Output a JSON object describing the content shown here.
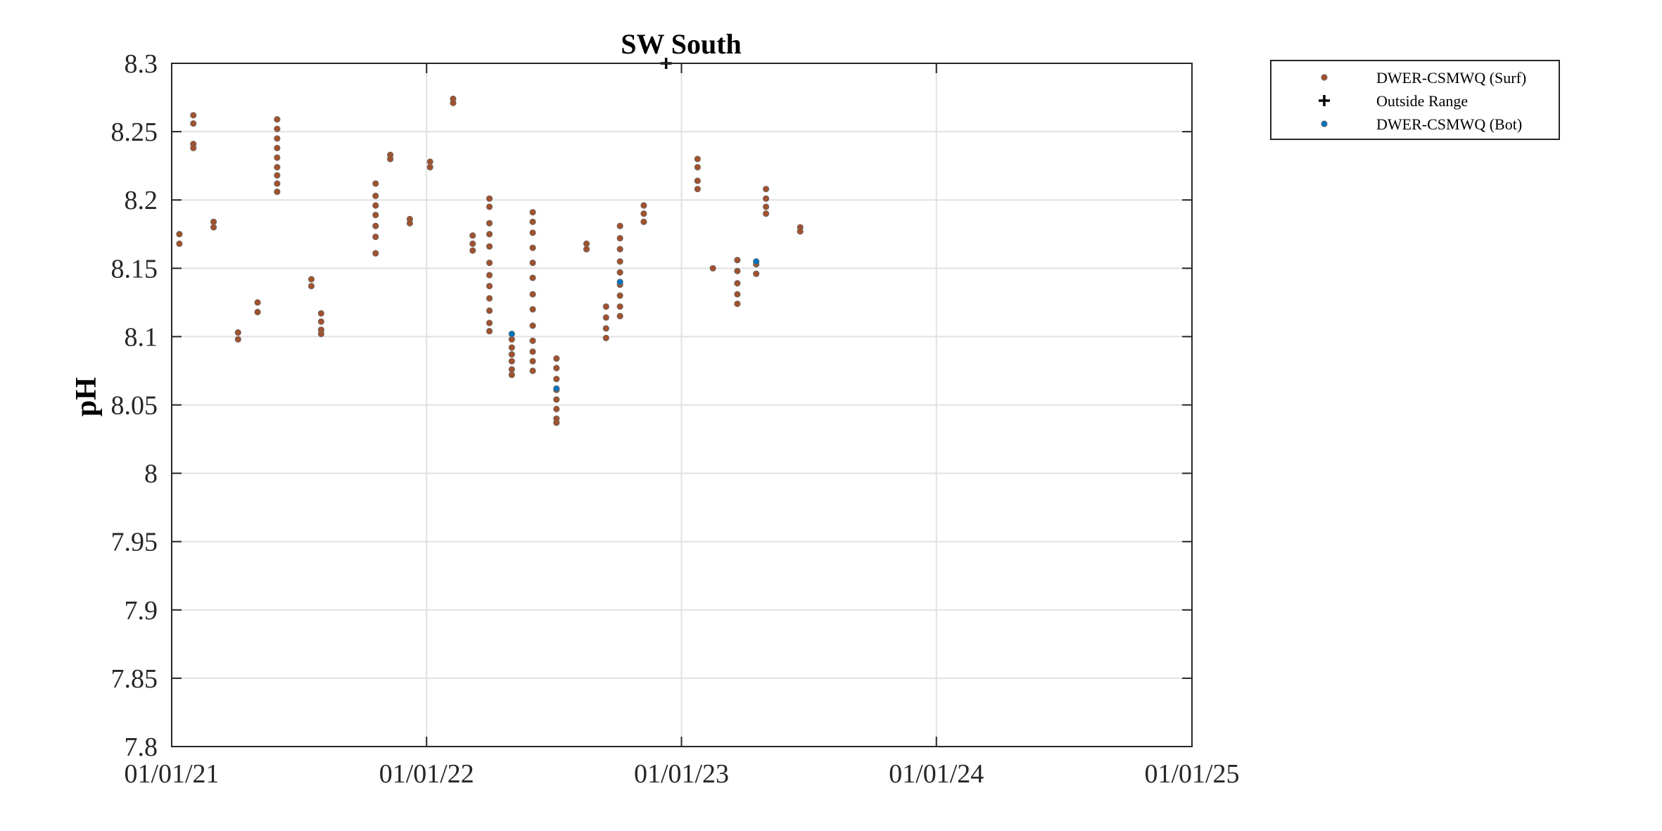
{
  "chart_data": {
    "type": "scatter",
    "title": "SW South",
    "xlabel": "",
    "ylabel": "pH",
    "x_ticks": [
      "01/01/21",
      "01/01/22",
      "01/01/23",
      "01/01/24",
      "01/01/25"
    ],
    "y_ticks": [
      "7.8",
      "7.85",
      "7.9",
      "7.95",
      "8",
      "8.05",
      "8.1",
      "8.15",
      "8.2",
      "8.25",
      "8.3"
    ],
    "xlim": [
      "2021-01-01",
      "2025-01-01"
    ],
    "ylim": [
      7.8,
      8.3
    ],
    "grid": true,
    "legend_position": "outside-top-right",
    "colors": {
      "surf": "#a0522d",
      "bot": "#0072bd",
      "outside": "#000000",
      "grid": "#e1e1e1",
      "axis": "#262626"
    },
    "series": [
      {
        "name": "DWER-CSMWQ (Surf)",
        "marker": "dot",
        "color": "#a0522d",
        "points": [
          [
            "2021-01-12",
            8.175
          ],
          [
            "2021-01-12",
            8.168
          ],
          [
            "2021-02-01",
            8.262
          ],
          [
            "2021-02-01",
            8.256
          ],
          [
            "2021-02-01",
            8.241
          ],
          [
            "2021-02-01",
            8.238
          ],
          [
            "2021-03-02",
            8.184
          ],
          [
            "2021-03-02",
            8.18
          ],
          [
            "2021-04-06",
            8.103
          ],
          [
            "2021-04-06",
            8.098
          ],
          [
            "2021-05-04",
            8.125
          ],
          [
            "2021-05-04",
            8.118
          ],
          [
            "2021-06-01",
            8.259
          ],
          [
            "2021-06-01",
            8.252
          ],
          [
            "2021-06-01",
            8.245
          ],
          [
            "2021-06-01",
            8.238
          ],
          [
            "2021-06-01",
            8.231
          ],
          [
            "2021-06-01",
            8.224
          ],
          [
            "2021-06-01",
            8.218
          ],
          [
            "2021-06-01",
            8.212
          ],
          [
            "2021-06-01",
            8.206
          ],
          [
            "2021-07-20",
            8.142
          ],
          [
            "2021-07-20",
            8.137
          ],
          [
            "2021-08-03",
            8.117
          ],
          [
            "2021-08-03",
            8.111
          ],
          [
            "2021-08-03",
            8.105
          ],
          [
            "2021-08-03",
            8.102
          ],
          [
            "2021-10-20",
            8.212
          ],
          [
            "2021-10-20",
            8.203
          ],
          [
            "2021-10-20",
            8.196
          ],
          [
            "2021-10-20",
            8.189
          ],
          [
            "2021-10-20",
            8.181
          ],
          [
            "2021-10-20",
            8.173
          ],
          [
            "2021-10-20",
            8.161
          ],
          [
            "2021-11-10",
            8.233
          ],
          [
            "2021-11-10",
            8.23
          ],
          [
            "2021-12-08",
            8.186
          ],
          [
            "2021-12-08",
            8.183
          ],
          [
            "2022-01-06",
            8.228
          ],
          [
            "2022-01-06",
            8.224
          ],
          [
            "2022-02-08",
            8.274
          ],
          [
            "2022-02-08",
            8.271
          ],
          [
            "2022-03-08",
            8.174
          ],
          [
            "2022-03-08",
            8.168
          ],
          [
            "2022-03-08",
            8.163
          ],
          [
            "2022-04-01",
            8.201
          ],
          [
            "2022-04-01",
            8.195
          ],
          [
            "2022-04-01",
            8.183
          ],
          [
            "2022-04-01",
            8.175
          ],
          [
            "2022-04-01",
            8.166
          ],
          [
            "2022-04-01",
            8.154
          ],
          [
            "2022-04-01",
            8.145
          ],
          [
            "2022-04-01",
            8.137
          ],
          [
            "2022-04-01",
            8.128
          ],
          [
            "2022-04-01",
            8.119
          ],
          [
            "2022-04-01",
            8.11
          ],
          [
            "2022-04-01",
            8.104
          ],
          [
            "2022-05-03",
            8.098
          ],
          [
            "2022-05-03",
            8.092
          ],
          [
            "2022-05-03",
            8.087
          ],
          [
            "2022-05-03",
            8.082
          ],
          [
            "2022-05-03",
            8.076
          ],
          [
            "2022-05-03",
            8.072
          ],
          [
            "2022-06-02",
            8.191
          ],
          [
            "2022-06-02",
            8.184
          ],
          [
            "2022-06-02",
            8.176
          ],
          [
            "2022-06-02",
            8.165
          ],
          [
            "2022-06-02",
            8.154
          ],
          [
            "2022-06-02",
            8.143
          ],
          [
            "2022-06-02",
            8.131
          ],
          [
            "2022-06-02",
            8.12
          ],
          [
            "2022-06-02",
            8.108
          ],
          [
            "2022-06-02",
            8.097
          ],
          [
            "2022-06-02",
            8.089
          ],
          [
            "2022-06-02",
            8.082
          ],
          [
            "2022-06-02",
            8.075
          ],
          [
            "2022-07-06",
            8.084
          ],
          [
            "2022-07-06",
            8.077
          ],
          [
            "2022-07-06",
            8.069
          ],
          [
            "2022-07-06",
            8.061
          ],
          [
            "2022-07-06",
            8.054
          ],
          [
            "2022-07-06",
            8.047
          ],
          [
            "2022-07-06",
            8.04
          ],
          [
            "2022-07-06",
            8.037
          ],
          [
            "2022-08-18",
            8.168
          ],
          [
            "2022-08-18",
            8.164
          ],
          [
            "2022-09-15",
            8.122
          ],
          [
            "2022-09-15",
            8.114
          ],
          [
            "2022-09-15",
            8.106
          ],
          [
            "2022-09-15",
            8.099
          ],
          [
            "2022-10-05",
            8.181
          ],
          [
            "2022-10-05",
            8.172
          ],
          [
            "2022-10-05",
            8.164
          ],
          [
            "2022-10-05",
            8.155
          ],
          [
            "2022-10-05",
            8.147
          ],
          [
            "2022-10-05",
            8.138
          ],
          [
            "2022-10-05",
            8.13
          ],
          [
            "2022-10-05",
            8.122
          ],
          [
            "2022-10-05",
            8.115
          ],
          [
            "2022-11-08",
            8.196
          ],
          [
            "2022-11-08",
            8.19
          ],
          [
            "2022-11-08",
            8.184
          ],
          [
            "2023-01-24",
            8.23
          ],
          [
            "2023-01-24",
            8.224
          ],
          [
            "2023-01-24",
            8.214
          ],
          [
            "2023-01-24",
            8.208
          ],
          [
            "2023-02-15",
            8.15
          ],
          [
            "2023-03-22",
            8.156
          ],
          [
            "2023-03-22",
            8.148
          ],
          [
            "2023-03-22",
            8.139
          ],
          [
            "2023-03-22",
            8.131
          ],
          [
            "2023-03-22",
            8.124
          ],
          [
            "2023-04-18",
            8.153
          ],
          [
            "2023-04-18",
            8.146
          ],
          [
            "2023-05-02",
            8.208
          ],
          [
            "2023-05-02",
            8.201
          ],
          [
            "2023-05-02",
            8.195
          ],
          [
            "2023-05-02",
            8.19
          ],
          [
            "2023-06-20",
            8.18
          ],
          [
            "2023-06-20",
            8.177
          ]
        ]
      },
      {
        "name": "Outside Range",
        "marker": "plus",
        "color": "#000000",
        "points": [
          [
            "2022-12-10",
            8.3
          ]
        ]
      },
      {
        "name": "DWER-CSMWQ (Bot)",
        "marker": "dot",
        "color": "#0072bd",
        "points": [
          [
            "2022-05-03",
            8.102
          ],
          [
            "2022-07-06",
            8.062
          ],
          [
            "2022-10-05",
            8.14
          ],
          [
            "2023-04-18",
            8.155
          ]
        ]
      }
    ]
  }
}
